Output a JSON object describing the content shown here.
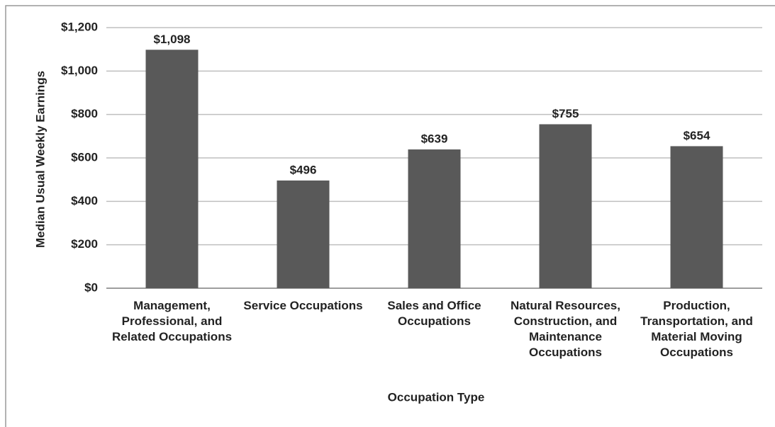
{
  "chart_data": {
    "type": "bar",
    "x_label": "Occupation Type",
    "y_label": "Median Usual Weekly Earnings",
    "categories": [
      "Management, Professional, and Related Occupations",
      "Service Occupations",
      "Sales and Office Occupations",
      "Natural Resources, Construction, and Maintenance Occupations",
      "Production, Transportation, and Material Moving Occupations"
    ],
    "values": [
      1098,
      496,
      639,
      755,
      654
    ],
    "value_labels": [
      "$1,098",
      "$496",
      "$639",
      "$755",
      "$654"
    ],
    "color": "#595959",
    "ylim": [
      0,
      1200
    ],
    "yticks": [
      {
        "value": 0,
        "label": "$0"
      },
      {
        "value": 200,
        "label": "$200"
      },
      {
        "value": 400,
        "label": "$400"
      },
      {
        "value": 600,
        "label": "$600"
      },
      {
        "value": 800,
        "label": "$800"
      },
      {
        "value": 1000,
        "label": "$1,000"
      },
      {
        "value": 1200,
        "label": "$1,200"
      }
    ],
    "grid": true
  }
}
